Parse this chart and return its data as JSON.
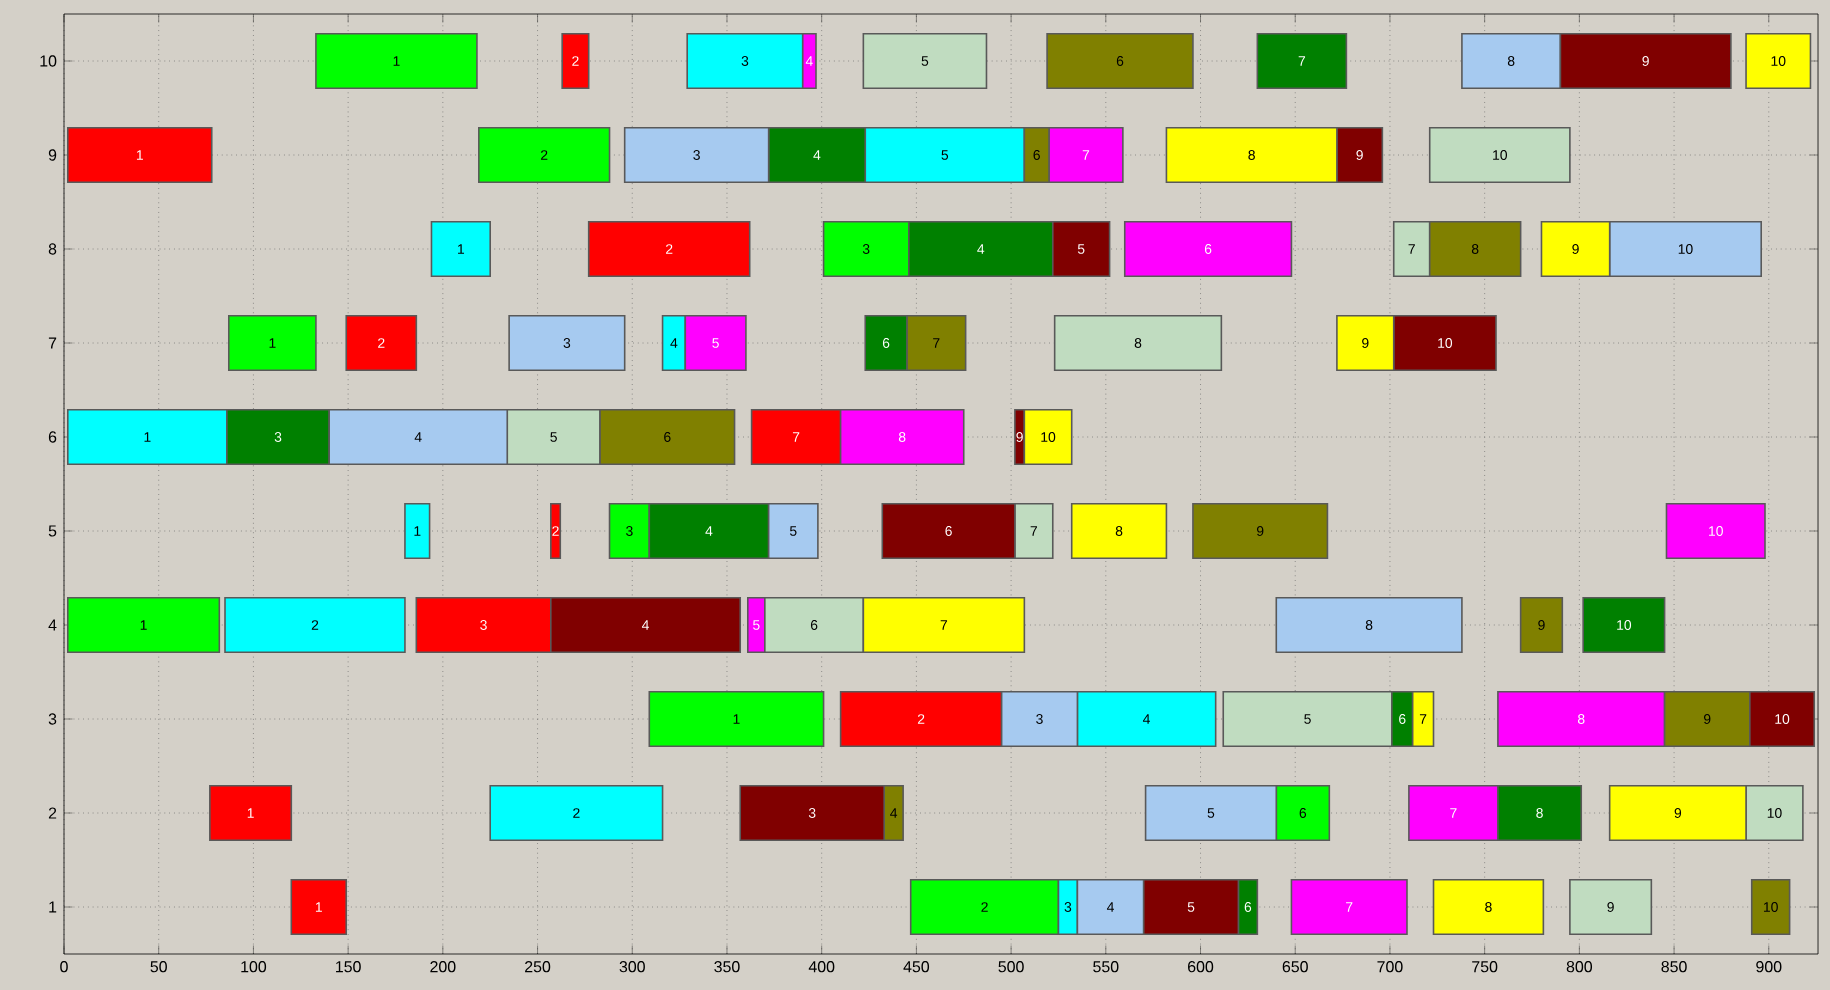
{
  "chart_data": {
    "type": "bar",
    "orientation": "horizontal",
    "categories": [
      "10",
      "9",
      "8",
      "7",
      "6",
      "5",
      "4",
      "3",
      "2",
      "1"
    ],
    "series": [
      {
        "color": "#ff0000",
        "base": [
          263,
          2,
          277,
          149,
          363,
          257,
          186,
          410,
          77,
          120
        ],
        "values": [
          14,
          76,
          85,
          37,
          47,
          5,
          71,
          85,
          43,
          29
        ]
      },
      {
        "color": "#00ff00",
        "base": [
          133,
          219,
          401,
          87,
          null,
          288,
          2,
          309,
          640,
          447
        ],
        "values": [
          85,
          69,
          45,
          46,
          null,
          21,
          80,
          92,
          28,
          78
        ]
      },
      {
        "color": "#00ffff",
        "base": [
          329,
          423,
          194,
          316,
          2,
          180,
          85,
          535,
          225,
          525
        ],
        "values": [
          61,
          84,
          31,
          12,
          84,
          13,
          95,
          73,
          91,
          10
        ]
      },
      {
        "color": "#ff00ff",
        "base": [
          390,
          520,
          560,
          328,
          410,
          846,
          361,
          757,
          710,
          648
        ],
        "values": [
          7,
          39,
          88,
          32,
          65,
          52,
          9,
          88,
          47,
          61
        ]
      },
      {
        "color": "#c0dcc0",
        "base": [
          422,
          721,
          702,
          523,
          234,
          502,
          370,
          612,
          888,
          795
        ],
        "values": [
          65,
          74,
          19,
          88,
          49,
          20,
          52,
          89,
          30,
          43
        ]
      },
      {
        "color": "#808000",
        "base": [
          519,
          507,
          721,
          445,
          283,
          596,
          769,
          845,
          433,
          891
        ],
        "values": [
          77,
          13,
          48,
          31,
          71,
          71,
          22,
          45,
          10,
          20
        ]
      },
      {
        "color": "#008000",
        "base": [
          630,
          372,
          446,
          423,
          86,
          309,
          802,
          701,
          757,
          620
        ],
        "values": [
          47,
          51,
          76,
          22,
          54,
          63,
          43,
          11,
          44,
          10
        ]
      },
      {
        "color": "#a6caf0",
        "base": [
          738,
          296,
          816,
          235,
          140,
          372,
          640,
          495,
          571,
          535
        ],
        "values": [
          52,
          76,
          80,
          61,
          94,
          26,
          98,
          40,
          69,
          35
        ]
      },
      {
        "color": "#800000",
        "base": [
          790,
          672,
          522,
          702,
          502,
          432,
          257,
          890,
          357,
          570
        ],
        "values": [
          90,
          24,
          30,
          54,
          5,
          70,
          100,
          34,
          76,
          50
        ]
      },
      {
        "color": "#ffff00",
        "base": [
          888,
          582,
          780,
          672,
          507,
          532,
          422,
          712,
          816,
          723
        ],
        "values": [
          34,
          90,
          36,
          30,
          25,
          50,
          85,
          11,
          72,
          58
        ]
      }
    ],
    "annotations": [
      "1",
      "2",
      "3",
      "4",
      "5",
      "6",
      "7",
      "8",
      "9",
      "10",
      "1",
      "2",
      "3",
      "4",
      "5",
      "6",
      "7",
      "8",
      "9",
      "10",
      "1",
      "2",
      "3",
      "4",
      "5",
      "6",
      "7",
      "8",
      "9",
      "10",
      "1",
      "2",
      "3",
      "4",
      "5",
      "6",
      "7",
      "8",
      "9",
      "10",
      "1",
      "3",
      "4",
      "5",
      "6",
      "7",
      "8",
      "9",
      "10",
      "1",
      "2",
      "3",
      "4",
      "5",
      "6",
      "7",
      "8",
      "9",
      "10",
      "1",
      "2",
      "3",
      "4",
      "5",
      "6",
      "7",
      "8",
      "9",
      "10",
      "1",
      "2",
      "3",
      "4",
      "5",
      "6",
      "7",
      "8",
      "9",
      "10",
      "1",
      "2",
      "3",
      "4",
      "5",
      "6",
      "7",
      "8",
      "9",
      "10",
      "1",
      "2",
      "3",
      "4",
      "5",
      "6",
      "7",
      "8",
      "9",
      "10"
    ],
    "xlim": [
      0,
      926
    ],
    "xticks": [
      0,
      50,
      100,
      150,
      200,
      250,
      300,
      350,
      400,
      450,
      500,
      550,
      600,
      650,
      700,
      750,
      800,
      850,
      900
    ],
    "grid": true
  }
}
